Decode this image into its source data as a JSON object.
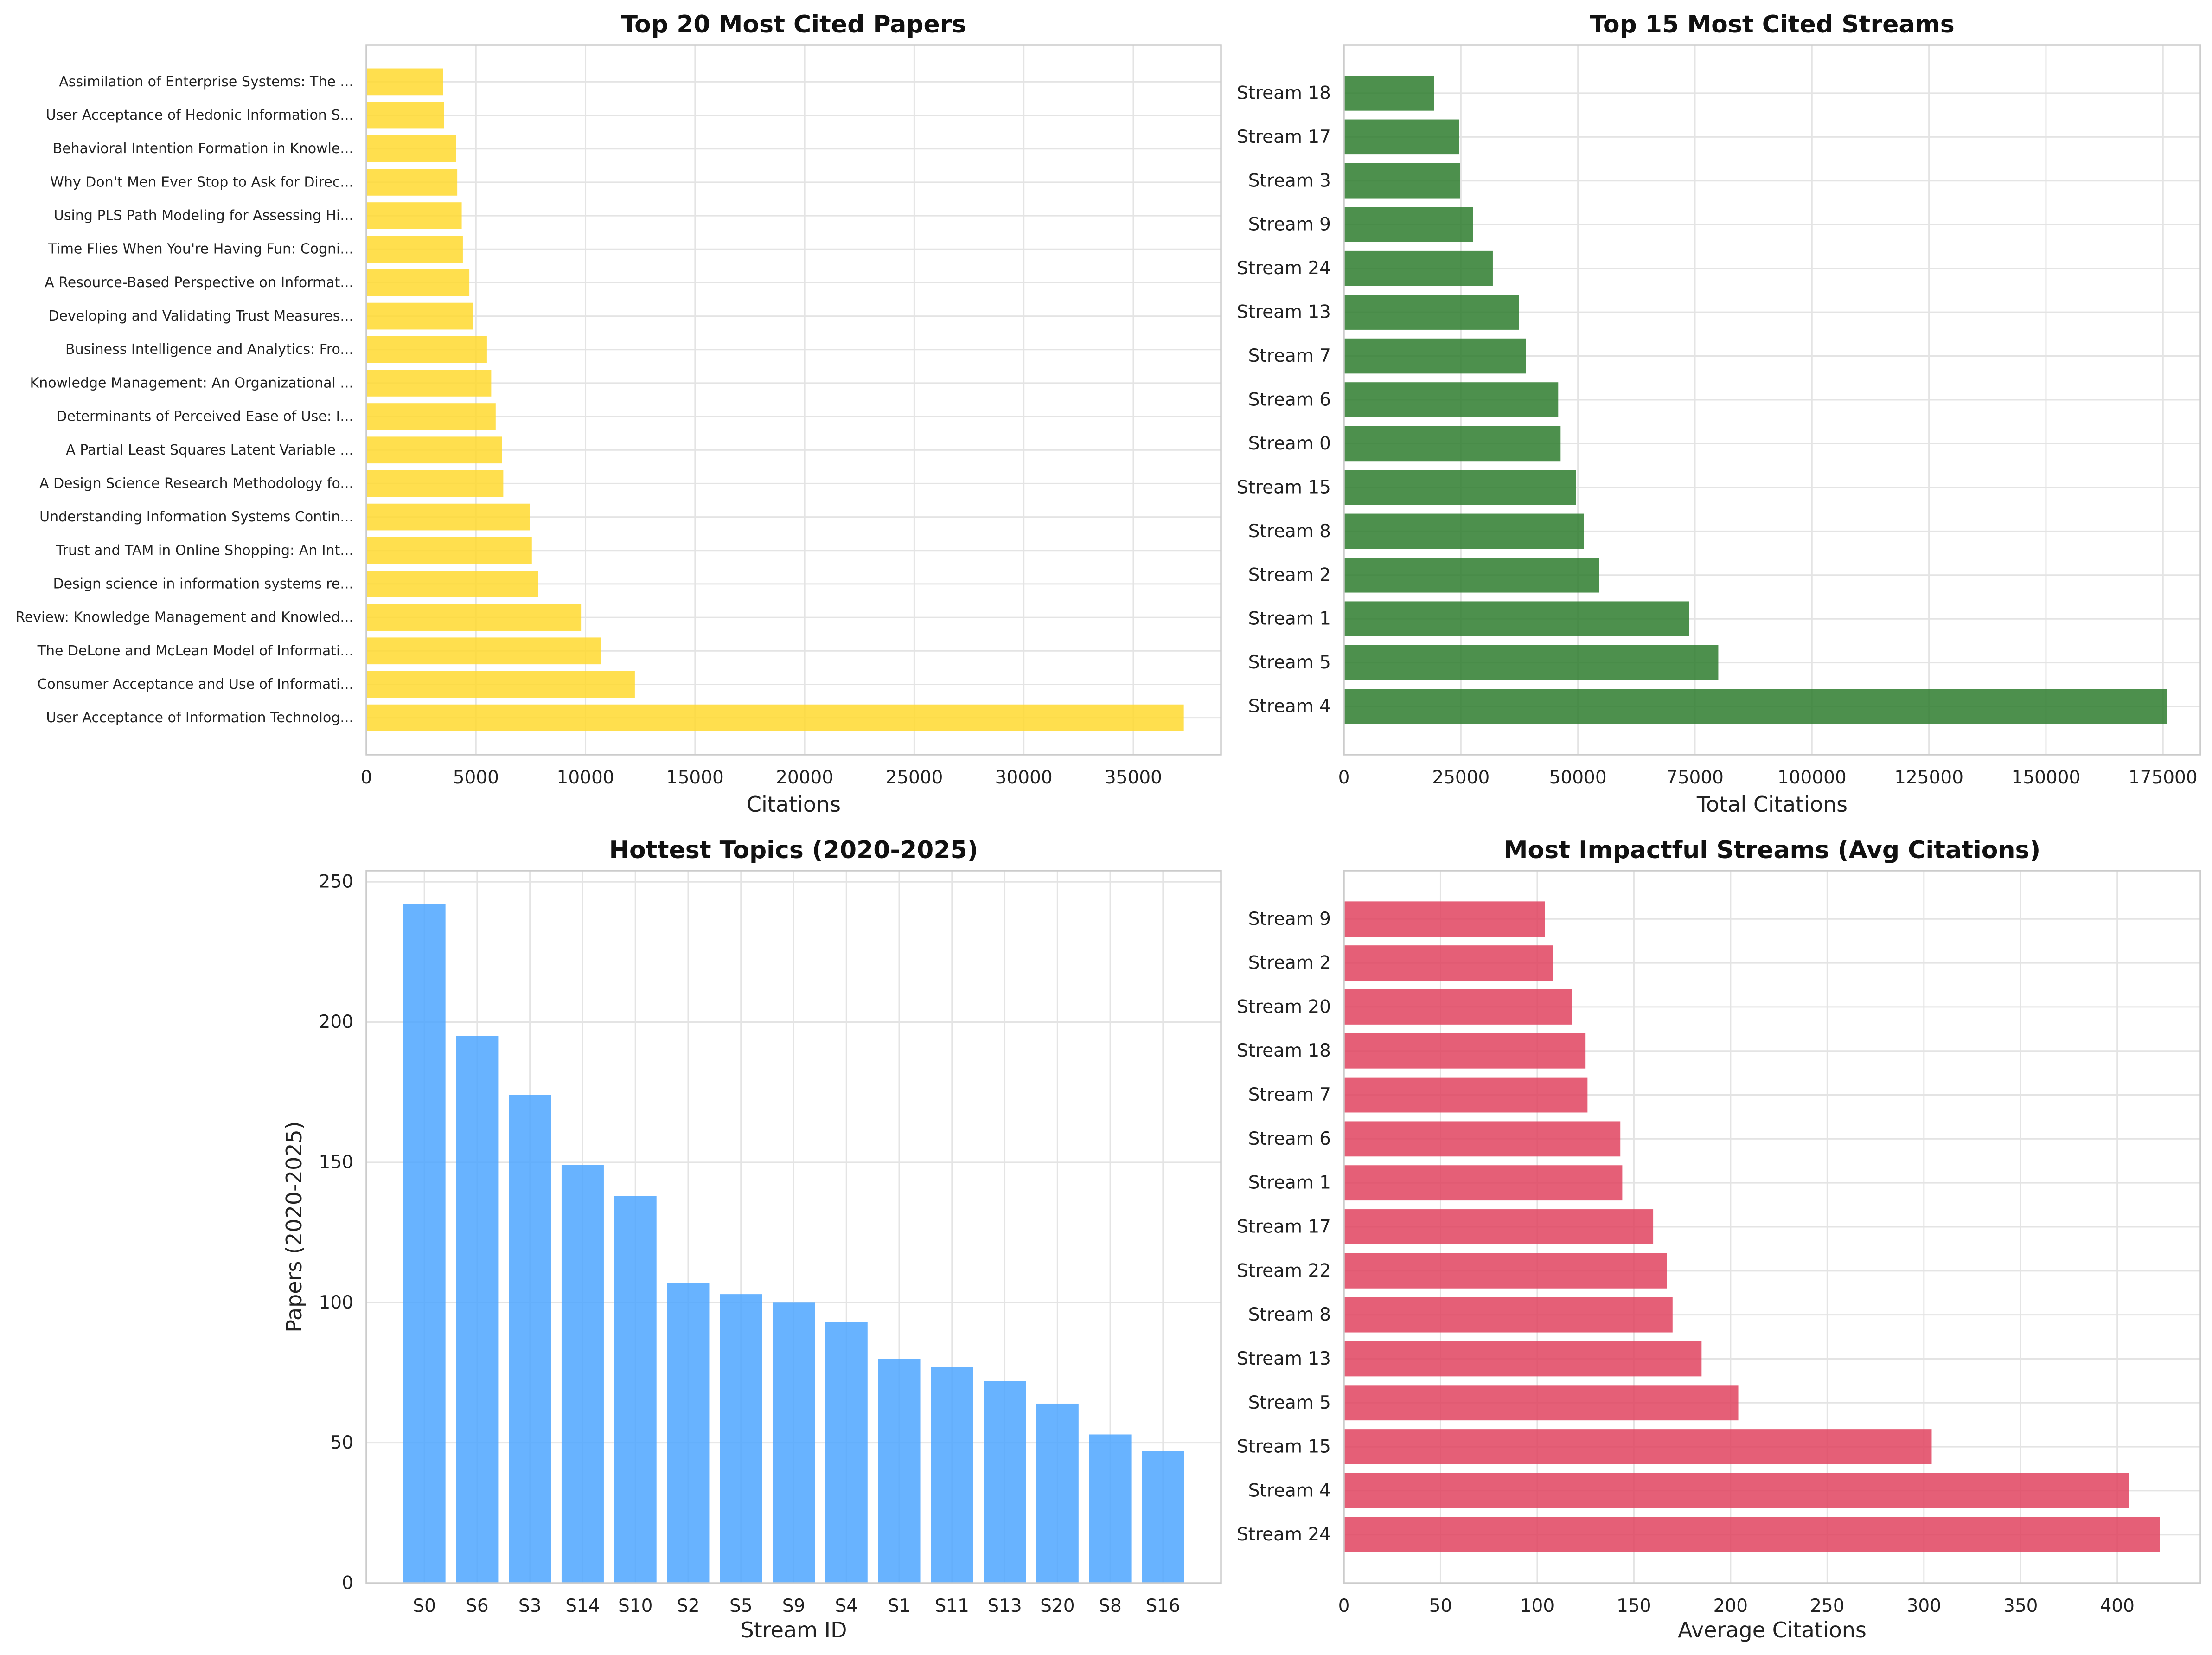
{
  "chart_data": [
    {
      "type": "bar",
      "orientation": "horizontal",
      "title": "Top 20 Most Cited Papers",
      "xlabel": "Citations",
      "ylabel": "",
      "xlim": [
        0,
        39000
      ],
      "xticks": [
        0,
        5000,
        10000,
        15000,
        20000,
        25000,
        30000,
        35000
      ],
      "xtick_labels": [
        "0",
        "5000",
        "10000",
        "15000",
        "20000",
        "25000",
        "30000",
        "35000"
      ],
      "grid": true,
      "color": "#ffd92f",
      "categories": [
        "User Acceptance of Information Technolog...",
        "Consumer Acceptance and Use of Informati...",
        "The DeLone and McLean Model of Informati...",
        "Review: Knowledge Management and Knowled...",
        "Design science in information systems re...",
        "Trust and TAM in Online Shopping: An Int...",
        "Understanding Information Systems Contin...",
        "A Design Science Research Methodology fo...",
        "A Partial Least Squares Latent Variable ...",
        "Determinants of Perceived Ease of Use: I...",
        "Knowledge Management: An Organizational ...",
        "Business Intelligence and Analytics: Fro...",
        "Developing and Validating Trust Measures...",
        "A Resource-Based Perspective on Informat...",
        "Time Flies When You're Having Fun: Cogni...",
        "Using PLS Path Modeling for Assessing Hi...",
        "Why Don't Men Ever Stop to Ask for Direc...",
        "Behavioral Intention Formation in Knowle...",
        "User Acceptance of Hedonic Information S...",
        "Assimilation of Enterprise Systems: The ..."
      ],
      "values": [
        37300,
        12250,
        10700,
        9800,
        7850,
        7550,
        7450,
        6250,
        6200,
        5900,
        5700,
        5500,
        4850,
        4700,
        4400,
        4350,
        4150,
        4100,
        3550,
        3500
      ]
    },
    {
      "type": "bar",
      "orientation": "horizontal",
      "title": "Top 15 Most Cited Streams",
      "xlabel": "Total Citations",
      "ylabel": "",
      "xlim": [
        0,
        183000
      ],
      "xticks": [
        0,
        25000,
        50000,
        75000,
        100000,
        125000,
        150000,
        175000
      ],
      "xtick_labels": [
        "0",
        "25000",
        "50000",
        "75000",
        "100000",
        "125000",
        "150000",
        "175000"
      ],
      "grid": true,
      "color": "#2e7d2e",
      "categories": [
        "Stream 4",
        "Stream 5",
        "Stream 1",
        "Stream 2",
        "Stream 8",
        "Stream 15",
        "Stream 0",
        "Stream 6",
        "Stream 7",
        "Stream 13",
        "Stream 24",
        "Stream 9",
        "Stream 3",
        "Stream 17",
        "Stream 18"
      ],
      "values": [
        175800,
        80000,
        73800,
        54500,
        51300,
        49600,
        46300,
        45800,
        38900,
        37400,
        31800,
        27600,
        24800,
        24600,
        19300
      ]
    },
    {
      "type": "bar",
      "orientation": "vertical",
      "title": "Hottest Topics (2020-2025)",
      "xlabel": "Stream ID",
      "ylabel": "Papers (2020-2025)",
      "ylim": [
        0,
        254
      ],
      "yticks": [
        0,
        50,
        100,
        150,
        200,
        250
      ],
      "ytick_labels": [
        "0",
        "50",
        "100",
        "150",
        "200",
        "250"
      ],
      "grid": true,
      "color": "#4da6ff",
      "categories": [
        "S0",
        "S6",
        "S3",
        "S14",
        "S10",
        "S2",
        "S5",
        "S9",
        "S4",
        "S1",
        "S11",
        "S13",
        "S20",
        "S8",
        "S16"
      ],
      "values": [
        242,
        195,
        174,
        149,
        138,
        107,
        103,
        100,
        93,
        80,
        77,
        72,
        64,
        53,
        47
      ]
    },
    {
      "type": "bar",
      "orientation": "horizontal",
      "title": "Most Impactful Streams (Avg Citations)",
      "xlabel": "Average Citations",
      "ylabel": "",
      "xlim": [
        0,
        443
      ],
      "xticks": [
        0,
        50,
        100,
        150,
        200,
        250,
        300,
        350,
        400
      ],
      "xtick_labels": [
        "0",
        "50",
        "100",
        "150",
        "200",
        "250",
        "300",
        "350",
        "400"
      ],
      "grid": true,
      "color": "#e0435f",
      "categories": [
        "Stream 24",
        "Stream 4",
        "Stream 15",
        "Stream 5",
        "Stream 13",
        "Stream 8",
        "Stream 22",
        "Stream 17",
        "Stream 1",
        "Stream 6",
        "Stream 7",
        "Stream 18",
        "Stream 20",
        "Stream 2",
        "Stream 9"
      ],
      "values": [
        422,
        406,
        304,
        204,
        185,
        170,
        167,
        160,
        144,
        143,
        126,
        125,
        118,
        108,
        104
      ]
    }
  ]
}
